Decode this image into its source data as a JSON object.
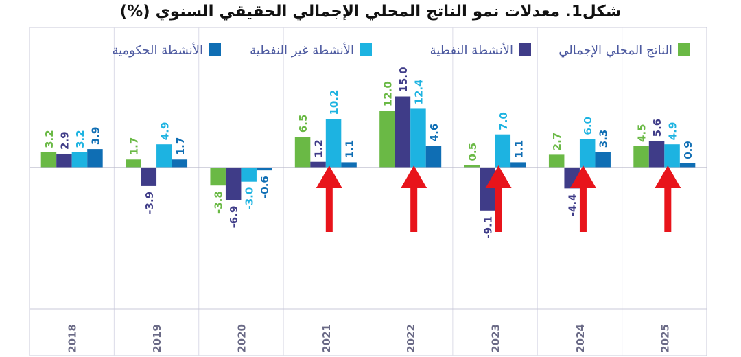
{
  "chart_data": {
    "type": "bar",
    "title": "شكل1. معدلات نمو الناتج المحلي الإجمالي الحقيقي السنوي (%)",
    "xlabel": "",
    "ylabel": "",
    "categories": [
      "2018",
      "2019",
      "2020",
      "2021",
      "2022",
      "2023",
      "2024",
      "2025"
    ],
    "series": [
      {
        "name": "الناتج المحلي الإجمالي",
        "color": "#6ab945",
        "values": [
          3.2,
          1.7,
          -3.8,
          6.5,
          12.0,
          0.5,
          2.7,
          4.5
        ]
      },
      {
        "name": "الأنشطة النفطية",
        "color": "#3f3c88",
        "values": [
          2.9,
          -3.9,
          -6.9,
          1.2,
          15.0,
          -9.1,
          -4.4,
          5.6
        ]
      },
      {
        "name": "الأنشطة غير النفطية",
        "color": "#1db3e1",
        "values": [
          3.2,
          4.9,
          -3.0,
          10.2,
          12.4,
          7.0,
          6.0,
          4.9
        ]
      },
      {
        "name": "الأنشطة الحكومية",
        "color": "#0f6eb4",
        "values": [
          3.9,
          1.7,
          -0.6,
          1.1,
          4.6,
          1.1,
          3.3,
          0.9
        ]
      }
    ],
    "value_labels": [
      [
        "3.2",
        "2.9",
        "3.2",
        "3.9"
      ],
      [
        "1.7",
        "-3.9",
        "4.9",
        "1.7"
      ],
      [
        "-3.8",
        "-6.9",
        "-3.0",
        "-0.6"
      ],
      [
        "6.5",
        "1.2",
        "10.2",
        "1.1"
      ],
      [
        "12.0",
        "15.0",
        "12.4",
        "4.6"
      ],
      [
        "0.5",
        "-9.1",
        "7.0",
        "1.1"
      ],
      [
        "2.7",
        "-4.4",
        "6.0",
        "3.3"
      ],
      [
        "4.5",
        "5.6",
        "4.9",
        "0.9"
      ]
    ],
    "annotations": {
      "arrow_years": [
        "2021",
        "2022",
        "2023",
        "2024",
        "2025"
      ],
      "arrow_color": "#e8141b"
    },
    "legend_position": "top",
    "grid": "vertical"
  }
}
